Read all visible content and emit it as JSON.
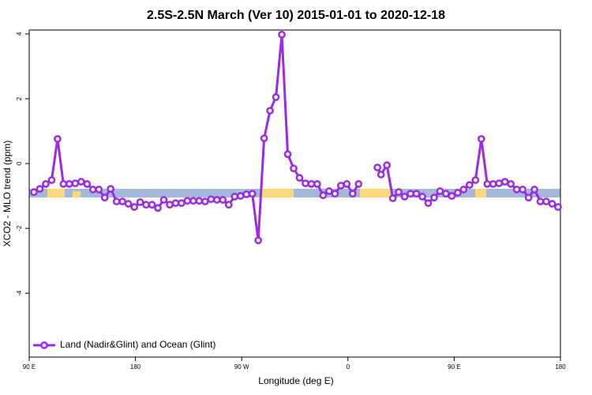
{
  "chart_data": {
    "type": "line",
    "title": "2.5S-2.5N March (Ver 10)   2015-01-01 to 2020-12-18",
    "x_label": "Longitude (deg E)",
    "y_label": "XCO2 - MLO trend (ppm)",
    "x": [
      94,
      99,
      104,
      109,
      114,
      119,
      124,
      129,
      134,
      139,
      144,
      149,
      154,
      159,
      164,
      169,
      174,
      179,
      184,
      189,
      194,
      199,
      204,
      209,
      214,
      219,
      224,
      229,
      234,
      239,
      244,
      249,
      254,
      259,
      264,
      269,
      274,
      279,
      284,
      289,
      294,
      299,
      304,
      309,
      314,
      319,
      324,
      329,
      334,
      339,
      344,
      349,
      354,
      359,
      364,
      369,
      374,
      379,
      385,
      388,
      393,
      398,
      403,
      408,
      413,
      418,
      423,
      428,
      433,
      438,
      443,
      448,
      453,
      458,
      463,
      468,
      473,
      478,
      483,
      488,
      493,
      498,
      503,
      508,
      513,
      518,
      523,
      528,
      533,
      538
    ],
    "series": [
      {
        "name": "Land (Nadir&Glint) and Ocean (Glint)",
        "color": "#9a2be2",
        "values": [
          -0.88,
          -0.78,
          -0.63,
          -0.51,
          0.76,
          -0.63,
          -0.63,
          -0.61,
          -0.56,
          -0.63,
          -0.8,
          -0.8,
          -1.05,
          -0.78,
          -1.17,
          -1.17,
          -1.24,
          -1.34,
          -1.19,
          -1.27,
          -1.27,
          -1.37,
          -1.12,
          -1.27,
          -1.22,
          -1.22,
          -1.15,
          -1.15,
          -1.15,
          -1.17,
          -1.1,
          -1.12,
          -1.12,
          -1.27,
          -1.02,
          -1.0,
          -0.95,
          -0.93,
          -2.37,
          0.78,
          1.63,
          2.05,
          3.98,
          0.29,
          -0.15,
          -0.44,
          -0.61,
          -0.63,
          -0.63,
          -0.98,
          -0.85,
          -0.93,
          -0.68,
          -0.63,
          -0.93,
          -0.63,
          null,
          null,
          -0.12,
          -0.34,
          -0.05,
          -1.07,
          -0.88,
          -1.02,
          -0.93,
          -0.93,
          -1.02,
          -1.22,
          -1.05,
          -0.85,
          -0.93,
          -1.0,
          -0.9,
          -0.8,
          -0.66,
          -0.51,
          0.76,
          -0.63,
          -0.63,
          -0.61,
          -0.56,
          -0.63,
          -0.8,
          -0.8,
          -1.05,
          -0.8,
          -1.17,
          -1.17,
          -1.24,
          -1.34
        ]
      }
    ],
    "xlim": [
      90,
      540
    ],
    "xticks": [
      {
        "value": 90,
        "label": "90 E"
      },
      180,
      {
        "value": 270,
        "label": "90 W"
      },
      {
        "value": 360,
        "label": "0"
      },
      {
        "value": 450,
        "label": "90 E"
      },
      {
        "value": 540,
        "label": "180"
      }
    ],
    "ylim": [
      -5.97,
      4.12
    ],
    "yticks": [
      4,
      2,
      0,
      -2,
      -4
    ],
    "legend": "bottom-left"
  }
}
